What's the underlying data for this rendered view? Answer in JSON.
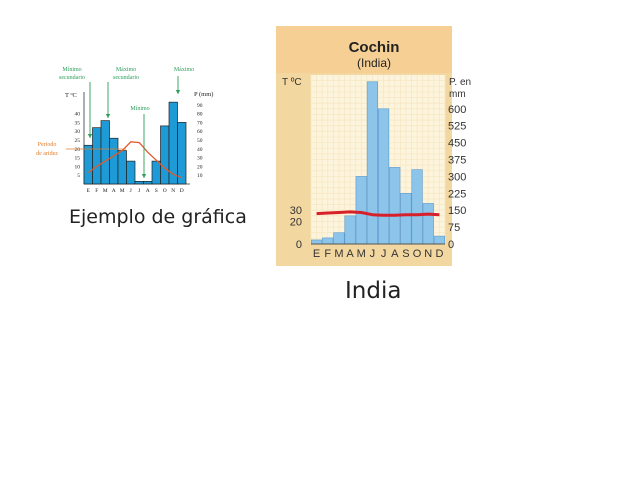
{
  "slide": {
    "caption_left": "Ejemplo de gráfica",
    "caption_right": "India"
  },
  "colors": {
    "sample_bar": "#1e9bd7",
    "sample_line": "#e05a2b",
    "annotation_green": "#2e9e5b",
    "annotation_orange": "#e07b2a",
    "cochin_bar": "#8cc4ea",
    "cochin_line": "#d8202a",
    "cochin_bg": "#f3d7a0",
    "cochin_grid": "#f6e8c4"
  },
  "chart_data": [
    {
      "id": "sample",
      "type": "bar",
      "title": "",
      "categories": [
        "E",
        "F",
        "M",
        "A",
        "M",
        "J",
        "J",
        "A",
        "S",
        "O",
        "N",
        "D"
      ],
      "ylabel_left": "T ºC",
      "ylabel_right": "P (mm)",
      "yticks_left": [
        5,
        10,
        15,
        20,
        25,
        30,
        35,
        40
      ],
      "yticks_right": [
        10,
        20,
        30,
        40,
        50,
        60,
        70,
        80,
        90
      ],
      "ylim_right": [
        0,
        100
      ],
      "ylim_left": [
        0,
        50
      ],
      "series": [
        {
          "kind": "bar",
          "axis": "right",
          "values": [
            44,
            64,
            72,
            52,
            38,
            26,
            3,
            3,
            26,
            66,
            93,
            70
          ]
        },
        {
          "kind": "line",
          "axis": "left",
          "values": [
            6.5,
            10,
            13,
            16,
            19,
            24,
            23.5,
            18,
            13.5,
            9,
            5.5,
            3.5
          ]
        }
      ],
      "annotations": [
        {
          "text": "Mínimo\nsecundario",
          "color": "green"
        },
        {
          "text": "Máximo\nsecundario",
          "color": "green"
        },
        {
          "text": "Mínimo",
          "color": "green"
        },
        {
          "text": "Máximo",
          "color": "green"
        },
        {
          "text": "Periodo\nde aridez",
          "color": "orange"
        }
      ],
      "grid": false,
      "legend": "none"
    },
    {
      "id": "cochin",
      "type": "bar",
      "title": "Cochin",
      "subtitle": "(India)",
      "categories": [
        "E",
        "F",
        "M",
        "A",
        "M",
        "J",
        "J",
        "A",
        "S",
        "O",
        "N",
        "D"
      ],
      "ylabel_left": "T ºC",
      "ylabel_right": "P. en mm",
      "yticks_left": [
        0,
        20,
        30
      ],
      "yticks_right": [
        0,
        75,
        150,
        225,
        300,
        375,
        450,
        525,
        600
      ],
      "ylim_left": [
        0,
        150
      ],
      "ylim_right": [
        0,
        750
      ],
      "series": [
        {
          "kind": "bar",
          "axis": "right",
          "values": [
            18,
            27,
            50,
            125,
            300,
            720,
            600,
            340,
            225,
            330,
            180,
            35
          ]
        },
        {
          "kind": "line",
          "axis": "left",
          "values": [
            27,
            27.5,
            28,
            28.5,
            28,
            26,
            25.5,
            25.5,
            26,
            26,
            26.5,
            26
          ]
        }
      ],
      "grid": true,
      "legend": "none"
    }
  ]
}
